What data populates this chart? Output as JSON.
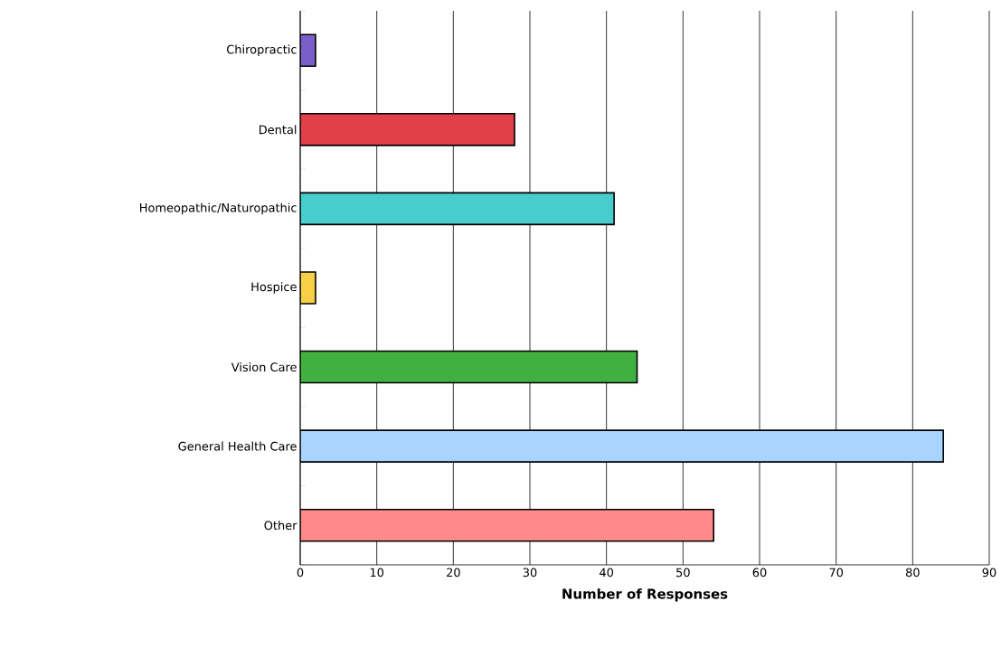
{
  "chart_data": {
    "type": "bar",
    "orientation": "horizontal",
    "xlabel": "Number of Responses",
    "categories": [
      "Chiropractic",
      "Dental",
      "Homeopathic/Naturopathic",
      "Hospice",
      "Vision Care",
      "General Health Care",
      "Other"
    ],
    "values": [
      2,
      28,
      41,
      2,
      44,
      84,
      54
    ],
    "colors": [
      "#7b5fc8",
      "#e0404a",
      "#48cccc",
      "#f8d048",
      "#40b040",
      "#a8d4ff",
      "#ff8a8a"
    ],
    "xlim": [
      0,
      90
    ],
    "xticks": [
      0,
      10,
      20,
      30,
      40,
      50,
      60,
      70,
      80,
      90
    ],
    "grid": "x"
  }
}
